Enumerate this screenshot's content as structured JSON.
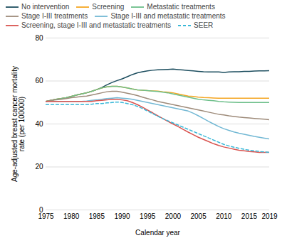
{
  "chart_data": {
    "type": "line",
    "xlabel": "Calendar year",
    "ylabel": "Age-adjusted breast cancer mortality\nrate (per 100000)",
    "x": [
      1975,
      1976,
      1977,
      1978,
      1979,
      1980,
      1981,
      1982,
      1983,
      1984,
      1985,
      1986,
      1987,
      1988,
      1989,
      1990,
      1991,
      1992,
      1993,
      1994,
      1995,
      1996,
      1997,
      1998,
      1999,
      2000,
      2001,
      2002,
      2003,
      2004,
      2005,
      2006,
      2007,
      2008,
      2009,
      2010,
      2011,
      2012,
      2013,
      2014,
      2015,
      2016,
      2017,
      2018,
      2019
    ],
    "xlim": [
      1975,
      2019
    ],
    "xticks": [
      1975,
      1980,
      1985,
      1990,
      1995,
      2000,
      2005,
      2010,
      2015,
      2019
    ],
    "ylim": [
      0,
      80
    ],
    "yticks": [
      0,
      20,
      40,
      60,
      80
    ],
    "grid": "y",
    "legend": "top",
    "series": [
      {
        "name": "No intervention",
        "color": "#1d4e5f",
        "values": [
          50.5,
          51.0,
          51.5,
          51.8,
          52.2,
          52.8,
          53.5,
          54.0,
          54.5,
          55.2,
          56.0,
          57.0,
          58.2,
          59.3,
          60.2,
          61.0,
          62.0,
          63.0,
          63.8,
          64.3,
          64.7,
          65.0,
          65.2,
          65.3,
          65.4,
          65.5,
          65.3,
          65.1,
          64.9,
          64.7,
          64.5,
          64.3,
          64.2,
          64.2,
          64.2,
          64.0,
          64.2,
          64.3,
          64.3,
          64.5,
          64.5,
          64.6,
          64.7,
          64.7,
          64.8
        ]
      },
      {
        "name": "Screening",
        "color": "#f5a623",
        "values": [
          50.5,
          51.0,
          51.5,
          51.8,
          52.2,
          52.8,
          53.5,
          54.0,
          54.5,
          55.2,
          56.0,
          56.8,
          57.3,
          57.5,
          57.5,
          57.2,
          56.8,
          56.3,
          55.9,
          55.7,
          55.5,
          55.4,
          55.3,
          55.0,
          54.8,
          54.5,
          54.0,
          53.5,
          53.0,
          52.8,
          52.5,
          52.3,
          52.2,
          52.1,
          52.0,
          52.0,
          52.0,
          52.0,
          52.0,
          52.0,
          52.0,
          52.0,
          52.0,
          52.0,
          52.0
        ]
      },
      {
        "name": "Metastatic treatments",
        "color": "#6dbf8a",
        "values": [
          50.5,
          51.0,
          51.5,
          51.8,
          52.2,
          52.8,
          53.5,
          54.0,
          54.5,
          55.2,
          56.0,
          56.8,
          57.3,
          57.5,
          57.5,
          57.2,
          56.8,
          56.3,
          55.9,
          55.7,
          55.5,
          55.3,
          55.1,
          54.8,
          54.5,
          54.0,
          53.5,
          53.0,
          52.5,
          52.0,
          51.5,
          51.2,
          51.0,
          50.8,
          50.5,
          50.3,
          50.2,
          50.1,
          50.0,
          50.0,
          50.0,
          50.0,
          50.0,
          50.0,
          50.0
        ]
      },
      {
        "name": "Stage I-III treatments",
        "color": "#9e8b7a",
        "values": [
          50.5,
          51.0,
          51.2,
          51.5,
          51.8,
          52.2,
          52.5,
          52.8,
          53.0,
          53.5,
          54.0,
          54.5,
          55.0,
          55.2,
          55.2,
          54.8,
          54.3,
          53.8,
          53.2,
          52.5,
          51.8,
          51.2,
          50.5,
          50.0,
          49.5,
          49.0,
          48.5,
          48.0,
          47.5,
          47.0,
          46.5,
          46.0,
          45.5,
          45.0,
          44.5,
          44.2,
          43.8,
          43.5,
          43.2,
          43.0,
          42.8,
          42.6,
          42.4,
          42.2,
          42.0
        ]
      },
      {
        "name": "Stage I-III and metastatic treatments",
        "color": "#72b8d4",
        "values": [
          50.5,
          50.5,
          50.5,
          50.5,
          50.5,
          50.5,
          50.5,
          50.5,
          50.7,
          51.0,
          51.2,
          51.5,
          51.8,
          52.0,
          52.2,
          52.0,
          51.8,
          51.5,
          51.0,
          50.5,
          50.0,
          49.5,
          49.0,
          48.5,
          48.0,
          47.5,
          47.0,
          46.5,
          46.0,
          45.0,
          43.8,
          42.5,
          41.2,
          40.0,
          38.8,
          37.8,
          37.0,
          36.3,
          35.7,
          35.2,
          34.7,
          34.2,
          33.8,
          33.4,
          33.0
        ]
      },
      {
        "name": "Screening, stage I-III and metastatic treatments",
        "color": "#d9534f",
        "values": [
          50.5,
          50.5,
          50.5,
          50.5,
          50.5,
          50.5,
          50.5,
          50.5,
          50.5,
          50.5,
          50.8,
          51.0,
          51.2,
          51.5,
          51.5,
          51.2,
          50.8,
          50.0,
          49.0,
          47.8,
          46.5,
          45.2,
          43.8,
          42.5,
          41.2,
          40.0,
          38.8,
          37.5,
          36.2,
          35.0,
          33.8,
          32.8,
          31.8,
          30.8,
          30.0,
          29.3,
          28.8,
          28.3,
          27.8,
          27.5,
          27.2,
          27.0,
          26.8,
          26.8,
          26.8
        ]
      },
      {
        "name": "SEER",
        "color": "#3ab8d8",
        "line_style": "dashed",
        "values": [
          49.0,
          49.0,
          49.0,
          49.0,
          49.0,
          49.0,
          49.0,
          49.0,
          49.0,
          49.2,
          49.5,
          49.5,
          49.8,
          50.0,
          50.2,
          50.0,
          49.5,
          49.0,
          48.2,
          47.2,
          46.0,
          44.8,
          43.6,
          42.5,
          41.5,
          40.5,
          39.5,
          38.5,
          37.5,
          36.5,
          35.5,
          34.5,
          33.5,
          32.5,
          31.5,
          30.5,
          29.8,
          29.2,
          28.7,
          28.2,
          27.8,
          27.5,
          27.2,
          27.0,
          26.8
        ]
      }
    ]
  }
}
